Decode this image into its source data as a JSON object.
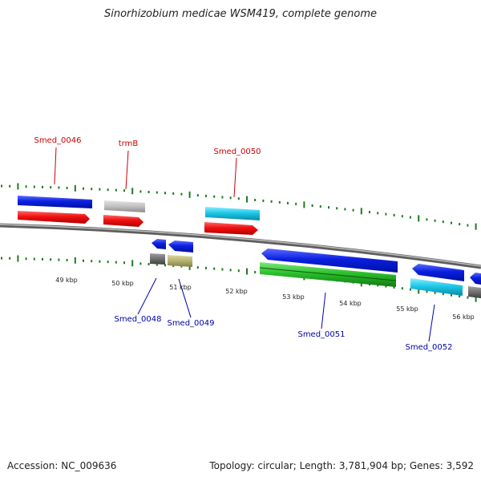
{
  "title": "Sinorhizobium medicae WSM419, complete genome",
  "footer": {
    "accession": "Accession: NC_009636",
    "summary": "Topology: circular; Length: 3,781,904 bp; Genes: 3,592"
  },
  "colors": {
    "backbone": "#8a8a8a",
    "tick": "#1e7a1e",
    "label_top": "#cc0000",
    "label_bottom": "#0000aa",
    "blue": "#0a1fe0",
    "red": "#f01010",
    "gray": "#b8b8b8",
    "cyan": "#1ec8e8",
    "green": "#2bbf2b",
    "darkgray": "#6e6e6e",
    "olive": "#b5b070"
  },
  "ruler": {
    "labels": [
      "49 kbp",
      "50 kbp",
      "51 kbp",
      "52 kbp",
      "53 kbp",
      "54 kbp",
      "55 kbp",
      "56 kbp"
    ]
  },
  "genes": [
    {
      "name": "Smed_0046",
      "strand": "top",
      "start": 0.0,
      "end": 0.12,
      "color": "blue",
      "arrow": false
    },
    {
      "name": "",
      "strand": "top2",
      "start": 0.0,
      "end": 0.12,
      "color": "red",
      "arrow": true
    },
    {
      "name": "trmB",
      "strand": "top",
      "start": 0.14,
      "end": 0.21,
      "color": "gray",
      "arrow": false
    },
    {
      "name": "",
      "strand": "top2",
      "start": 0.14,
      "end": 0.21,
      "color": "red",
      "arrow": true
    },
    {
      "name": "Smed_0050",
      "strand": "top",
      "start": 0.34,
      "end": 0.47,
      "color": "cyan",
      "arrow": false
    },
    {
      "name": "",
      "strand": "top2",
      "start": 0.34,
      "end": 0.47,
      "color": "red",
      "arrow": true
    }
  ],
  "labels": {
    "top": [
      "Smed_0046",
      "trmB",
      "Smed_0050"
    ],
    "bottom": [
      "Smed_0048",
      "Smed_0049",
      "Smed_0051",
      "Smed_0052"
    ]
  }
}
